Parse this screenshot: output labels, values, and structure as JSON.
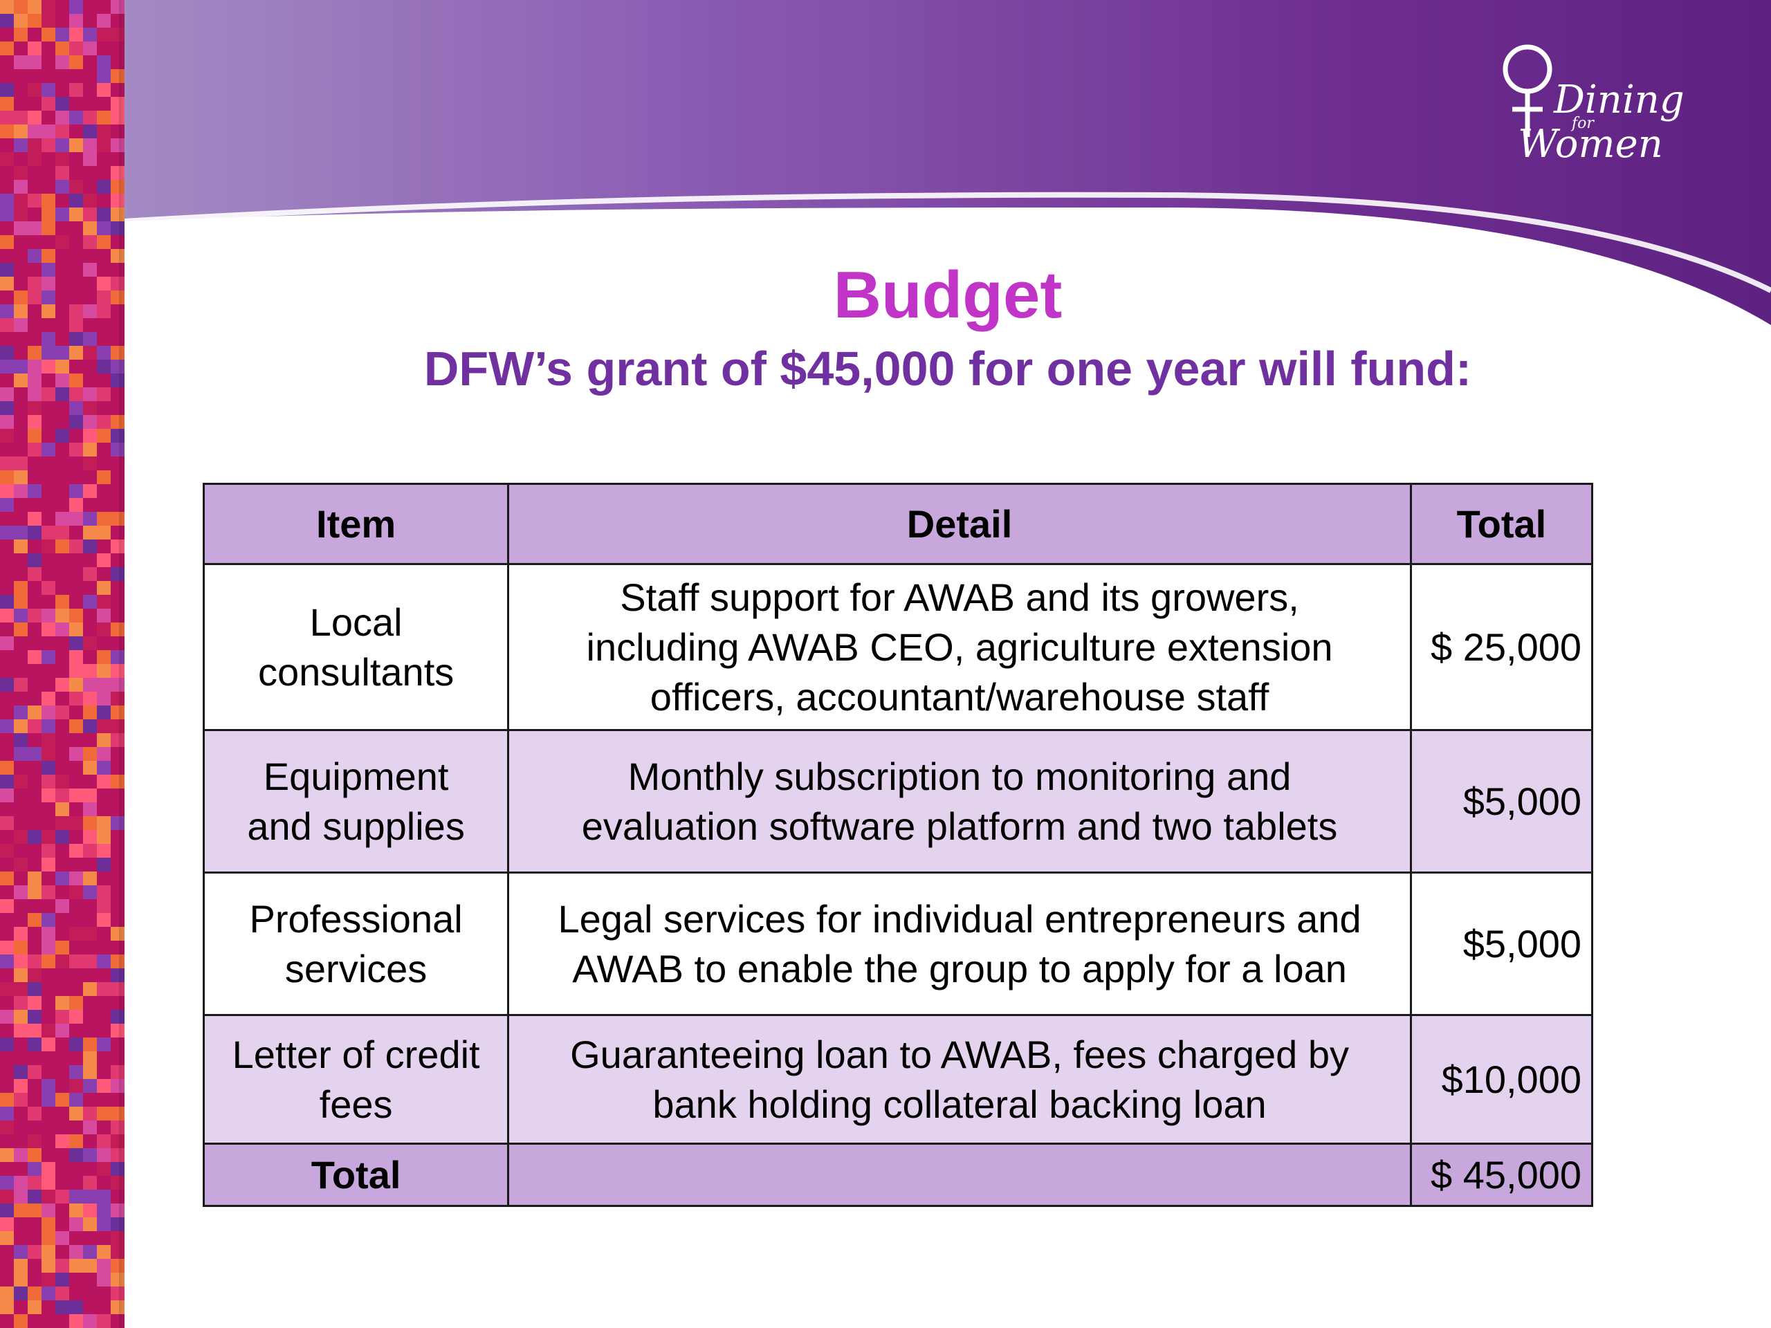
{
  "brand": {
    "logo_line1": "Dining",
    "logo_line2": "for",
    "logo_line3": "Women",
    "colors": {
      "title": "#c034c8",
      "subtitle": "#7030a0",
      "header_purple": "#6a2c8c",
      "table_header_bg": "#c8a8dc",
      "table_band_bg": "#e4d3ee",
      "strip_base": "#b8145f"
    }
  },
  "slide": {
    "title": "Budget",
    "subtitle": "DFW’s grant of $45,000 for one year will fund:"
  },
  "table": {
    "headers": {
      "item": "Item",
      "detail": "Detail",
      "total": "Total"
    },
    "rows": [
      {
        "item": [
          "Local",
          "consultants"
        ],
        "detail": [
          "Staff support for AWAB and its growers,",
          "including AWAB CEO, agriculture extension",
          "officers, accountant/warehouse staff"
        ],
        "total": "$ 25,000"
      },
      {
        "item": [
          "Equipment",
          "and supplies"
        ],
        "detail": [
          "Monthly subscription to monitoring and",
          "evaluation software platform and two tablets"
        ],
        "total": "$5,000"
      },
      {
        "item": [
          "Professional",
          "services"
        ],
        "detail": [
          "Legal services for individual entrepreneurs and",
          "AWAB to enable the group to apply for a loan"
        ],
        "total": "$5,000"
      },
      {
        "item": [
          "Letter of credit",
          "fees"
        ],
        "detail": [
          "Guaranteeing loan to AWAB, fees charged by",
          "bank holding collateral backing loan"
        ],
        "total": "$10,000"
      }
    ],
    "footer": {
      "label": "Total",
      "detail": "",
      "total": "$ 45,000"
    }
  }
}
